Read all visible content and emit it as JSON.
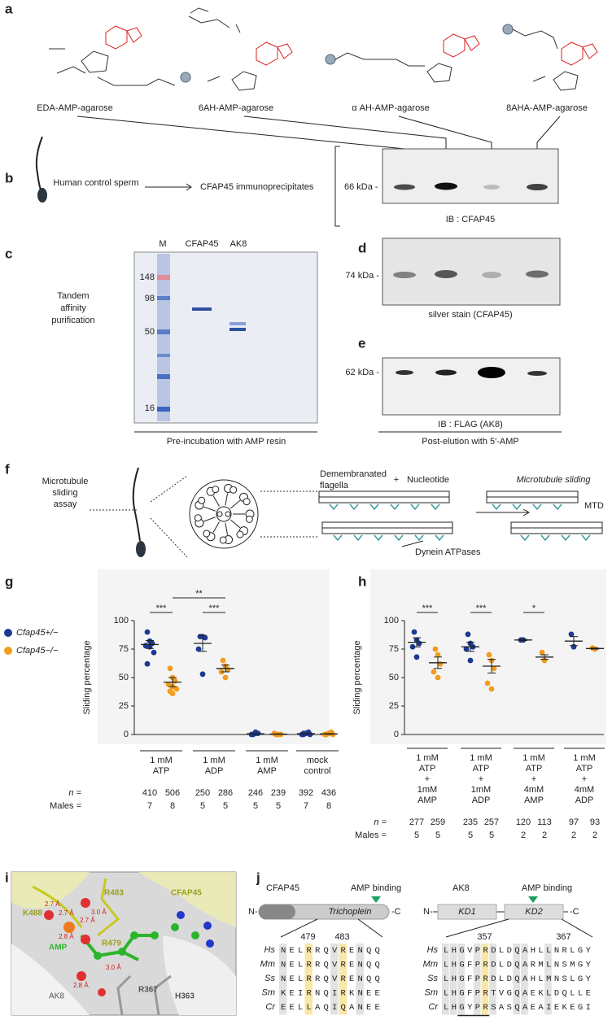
{
  "panels": {
    "a": {
      "letter": "a",
      "labels": [
        "EDA-AMP-agarose",
        "6AH-AMP-agarose",
        "α AH-AMP-agarose",
        "8AHA-AMP-agarose"
      ]
    },
    "b": {
      "letter": "b",
      "source": "Human control sperm",
      "target": "CFAP45 immunoprecipitates",
      "marker": "66 kDa -",
      "caption": "IB : CFAP45"
    },
    "c": {
      "letter": "c",
      "side_label": [
        "Tandem",
        "affinity",
        "purification"
      ],
      "lanes": [
        "M",
        "CFAP45",
        "AK8"
      ],
      "markers": [
        "148",
        "98",
        "50",
        "16"
      ],
      "caption": "Pre-incubation with AMP resin"
    },
    "d": {
      "letter": "d",
      "marker": "74 kDa -",
      "caption": "silver stain (CFAP45)"
    },
    "e": {
      "letter": "e",
      "marker": "62 kDa -",
      "caption": "IB : FLAG (AK8)",
      "footer": "Post-elution with 5′-AMP"
    },
    "f": {
      "letter": "f",
      "assay": [
        "Microtubule",
        "sliding",
        "assay"
      ],
      "flagella": "Demembranated",
      "flagella2": "flagella",
      "plus": "+",
      "nucleotide": "Nucleotide",
      "result": "Microtubule sliding",
      "mtd": "MTD",
      "dynein": "Dynein ATPases"
    },
    "g": {
      "letter": "g"
    },
    "h": {
      "letter": "h"
    },
    "i": {
      "letter": "i",
      "labels": [
        "K488",
        "R483",
        "CFAP45",
        "R479",
        "AMP",
        "AK8",
        "R367",
        "H363"
      ],
      "distances": [
        "2.7 Å",
        "2.7 Å",
        "3.0 Å",
        "2.7 Å",
        "2.8 Å",
        "3.0 Å",
        "2.8 Å"
      ]
    },
    "j": {
      "letter": "j",
      "cfap45": {
        "name": "CFAP45",
        "binding": "AMP binding",
        "n": "N-",
        "c": "-C",
        "domain": "Trichoplein",
        "positions": [
          "479",
          "483"
        ],
        "species": [
          "Hs",
          "Mm",
          "Ss",
          "Sm",
          "Cr"
        ],
        "sequences": [
          "NELRRQVRENQQ",
          "NELRRQVRENQQ",
          "NELRRQVRENQQ",
          "KEIRNQIRKNEE",
          "EELLAQIQANEE"
        ]
      },
      "ak8": {
        "name": "AK8",
        "binding": "AMP binding",
        "n": "N-",
        "c": "-C",
        "domains": [
          "KD1",
          "KD2"
        ],
        "positions": [
          "357",
          "367"
        ],
        "species": [
          "Hs",
          "Mm",
          "Ss",
          "Sm",
          "Cr"
        ],
        "sequences": [
          "LHGVPRDLDQAHLLNRLGY",
          "LHGFPRDLDQARMLNSMGY",
          "LHGFPRDLDQAHLMNSLGY",
          "LHGFPRTVGQAEKLDQLLE",
          "LHGYPRSASQAEAIEKEGI"
        ]
      }
    }
  },
  "chart_data": [
    {
      "type": "strip",
      "ylabel": "Sliding percentage",
      "ylim": [
        0,
        100
      ],
      "yticks": [
        0,
        25,
        50,
        75,
        100
      ],
      "categories": [
        [
          "1 mM",
          "ATP"
        ],
        [
          "1 mM",
          "ADP"
        ],
        [
          "1 mM",
          "AMP"
        ],
        [
          "mock",
          "control"
        ]
      ],
      "series": [
        {
          "name": "Cfap45+/−",
          "color": "#1c3a94",
          "values": [
            79,
            80,
            0.6,
            0.7
          ],
          "errors": [
            3.5,
            7,
            0.3,
            0.3
          ],
          "points": [
            [
              90,
              82,
              80,
              78,
              77,
              72,
              62
            ],
            [
              86,
              86,
              85,
              75,
              53
            ],
            [
              0,
              1,
              1,
              0,
              2
            ],
            [
              0,
              1,
              2,
              0,
              1,
              0,
              1
            ]
          ]
        },
        {
          "name": "Cfap45−/−",
          "color": "#f39c1d",
          "values": [
            46,
            58,
            0.3,
            0.5
          ],
          "errors": [
            4,
            3,
            0.2,
            0.3
          ],
          "points": [
            [
              58,
              50,
              47,
              44,
              42,
              40,
              38,
              36
            ],
            [
              65,
              60,
              57,
              55,
              50
            ],
            [
              0,
              0,
              0,
              1,
              0
            ],
            [
              0,
              1,
              2,
              0,
              1,
              0,
              0,
              1
            ]
          ]
        }
      ],
      "significance": [
        {
          "label": "***",
          "from": [
            0,
            0
          ],
          "to": [
            0,
            1
          ]
        },
        {
          "label": "***",
          "from": [
            1,
            0
          ],
          "to": [
            1,
            1
          ]
        },
        {
          "label": "**",
          "from": [
            0,
            1
          ],
          "to": [
            1,
            1
          ]
        }
      ],
      "n_label": "n =",
      "n": [
        410,
        506,
        250,
        286,
        246,
        239,
        392,
        436
      ],
      "males_label": "Males =",
      "males": [
        7,
        8,
        5,
        5,
        5,
        5,
        7,
        8
      ]
    },
    {
      "type": "strip",
      "ylabel": "Sliding percentage",
      "ylim": [
        0,
        100
      ],
      "yticks": [
        0,
        25,
        50,
        75,
        100
      ],
      "categories": [
        [
          "1 mM",
          "ATP",
          "+",
          "1mM",
          "AMP"
        ],
        [
          "1 mM",
          "ATP",
          "+",
          "1mM",
          "ADP"
        ],
        [
          "1 mM",
          "ATP",
          "+",
          "4mM",
          "AMP"
        ],
        [
          "1 mM",
          "ATP",
          "+",
          "4mM",
          "ADP"
        ]
      ],
      "series": [
        {
          "name": "Cfap45+/−",
          "color": "#1c3a94",
          "values": [
            81,
            77,
            83,
            82
          ],
          "errors": [
            4,
            4,
            0.5,
            4
          ],
          "points": [
            [
              90,
              83,
              80,
              77,
              68
            ],
            [
              88,
              80,
              77,
              75,
              65
            ],
            [
              83,
              83
            ],
            [
              88,
              77
            ]
          ]
        },
        {
          "name": "Cfap45−/−",
          "color": "#f39c1d",
          "values": [
            63,
            60,
            68,
            75.5
          ],
          "errors": [
            5,
            6,
            2,
            0.5
          ],
          "points": [
            [
              75,
              70,
              62,
              55,
              50
            ],
            [
              70,
              65,
              58,
              45,
              40
            ],
            [
              72,
              65
            ],
            [
              76,
              75
            ]
          ]
        }
      ],
      "significance": [
        {
          "label": "***",
          "from": [
            0,
            0
          ],
          "to": [
            0,
            1
          ]
        },
        {
          "label": "***",
          "from": [
            1,
            0
          ],
          "to": [
            1,
            1
          ]
        },
        {
          "label": "*",
          "from": [
            2,
            0
          ],
          "to": [
            2,
            1
          ]
        }
      ],
      "n_label": "n =",
      "n": [
        277,
        259,
        235,
        257,
        120,
        113,
        97,
        93
      ],
      "males_label": "Males =",
      "males": [
        5,
        5,
        5,
        5,
        2,
        2,
        2,
        2
      ]
    }
  ]
}
